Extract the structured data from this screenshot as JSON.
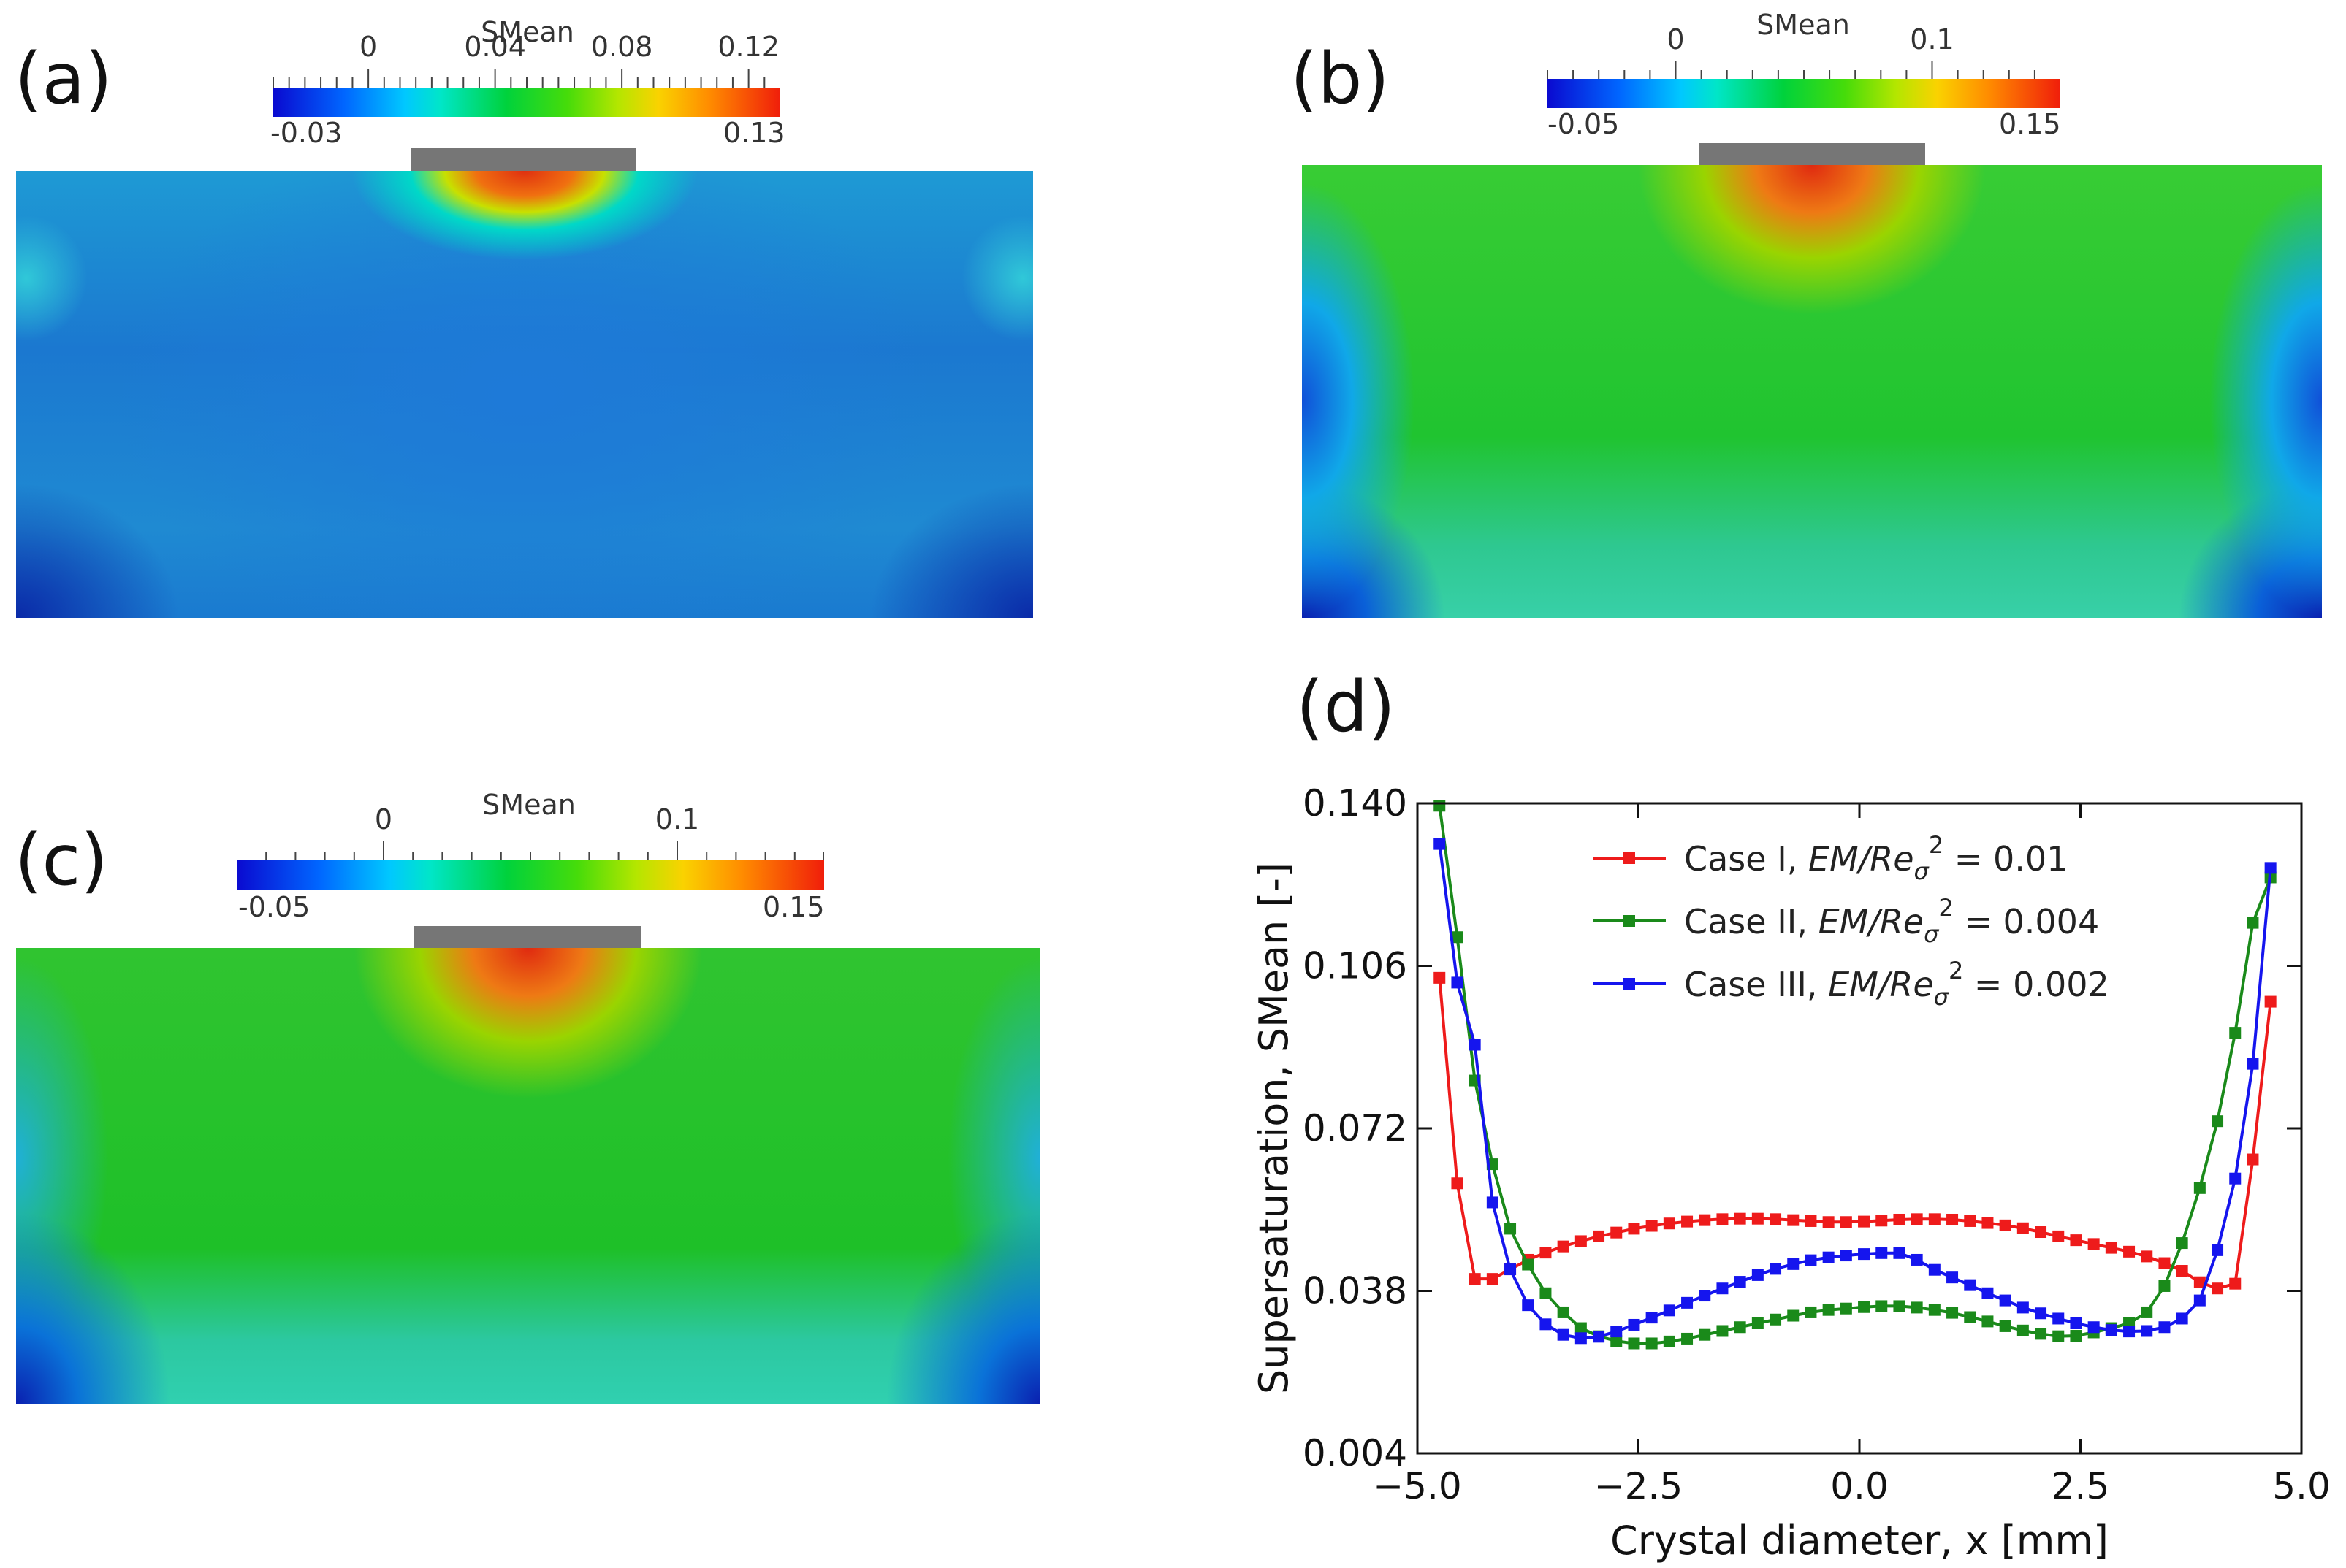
{
  "panels": {
    "a": {
      "label": "(a)",
      "colorbar": {
        "title": "SMean",
        "min_label": "-0.03",
        "max_label": "0.13",
        "tick_labels": [
          "0",
          "0.04",
          "0.08",
          "0.12"
        ],
        "tick_values": [
          0,
          0.04,
          0.08,
          0.12
        ],
        "range": [
          -0.03,
          0.13
        ]
      }
    },
    "b": {
      "label": "(b)",
      "colorbar": {
        "title": "SMean",
        "min_label": "-0.05",
        "max_label": "0.15",
        "tick_labels": [
          "0",
          "0.1"
        ],
        "tick_values": [
          0,
          0.1
        ],
        "range": [
          -0.05,
          0.15
        ]
      }
    },
    "c": {
      "label": "(c)",
      "colorbar": {
        "title": "SMean",
        "min_label": "-0.05",
        "max_label": "0.15",
        "tick_labels": [
          "0",
          "0.1"
        ],
        "tick_values": [
          0,
          0.1
        ],
        "range": [
          -0.05,
          0.15
        ]
      }
    },
    "d": {
      "label": "(d)"
    }
  },
  "colors": {
    "case1": "#ee1b1b",
    "case2": "#1a8a1a",
    "case3": "#1515ee",
    "crystal": "#767676"
  },
  "chart_data": {
    "type": "line",
    "xlabel": "Crystal diameter, x [mm]",
    "ylabel": "Supersaturation, SMean [-]",
    "xlim": [
      -5.0,
      5.0
    ],
    "ylim": [
      0.004,
      0.14
    ],
    "xticks": [
      -5.0,
      -2.5,
      0.0,
      2.5,
      5.0
    ],
    "xtick_labels": [
      "−5.0",
      "−2.5",
      "0.0",
      "2.5",
      "5.0"
    ],
    "yticks": [
      0.004,
      0.038,
      0.072,
      0.106,
      0.14
    ],
    "ytick_labels": [
      "0.004",
      "0.038",
      "0.072",
      "0.106",
      "0.140"
    ],
    "legend_position": "top-center",
    "series": [
      {
        "name": "Case I, EM/Reσ² = 0.01",
        "legend_prefix": "Case I, ",
        "legend_var": "EM/Re",
        "legend_sub": "σ",
        "legend_sup": "2",
        "legend_suffix": " = 0.01",
        "color": "#ee1b1b",
        "x": [
          -4.75,
          -4.55,
          -4.35,
          -4.15,
          -3.95,
          -3.75,
          -3.55,
          -3.35,
          -3.15,
          -2.95,
          -2.75,
          -2.55,
          -2.35,
          -2.15,
          -1.95,
          -1.75,
          -1.55,
          -1.35,
          -1.15,
          -0.95,
          -0.75,
          -0.55,
          -0.35,
          -0.15,
          0.05,
          0.25,
          0.45,
          0.65,
          0.85,
          1.05,
          1.25,
          1.45,
          1.65,
          1.85,
          2.05,
          2.25,
          2.45,
          2.65,
          2.85,
          3.05,
          3.25,
          3.45,
          3.65,
          3.85,
          4.05,
          4.25,
          4.45,
          4.65
        ],
        "y": [
          0.1035,
          0.0605,
          0.0405,
          0.0405,
          0.0425,
          0.0445,
          0.046,
          0.0473,
          0.0484,
          0.0494,
          0.0502,
          0.051,
          0.0516,
          0.0521,
          0.0525,
          0.0528,
          0.053,
          0.0531,
          0.0531,
          0.053,
          0.0528,
          0.0526,
          0.0524,
          0.0524,
          0.0525,
          0.0527,
          0.0529,
          0.053,
          0.053,
          0.0529,
          0.0526,
          0.0522,
          0.0517,
          0.0511,
          0.0503,
          0.0494,
          0.0486,
          0.0478,
          0.047,
          0.0462,
          0.0452,
          0.0438,
          0.0422,
          0.0398,
          0.0385,
          0.0395,
          0.0655,
          0.0985
        ]
      },
      {
        "name": "Case II, EM/Reσ² = 0.004",
        "legend_prefix": "Case II, ",
        "legend_var": "EM/Re",
        "legend_sub": "σ",
        "legend_sup": "2",
        "legend_suffix": " = 0.004",
        "color": "#1a8a1a",
        "x": [
          -4.75,
          -4.55,
          -4.35,
          -4.15,
          -3.95,
          -3.75,
          -3.55,
          -3.35,
          -3.15,
          -2.95,
          -2.75,
          -2.55,
          -2.35,
          -2.15,
          -1.95,
          -1.75,
          -1.55,
          -1.35,
          -1.15,
          -0.95,
          -0.75,
          -0.55,
          -0.35,
          -0.15,
          0.05,
          0.25,
          0.45,
          0.65,
          0.85,
          1.05,
          1.25,
          1.45,
          1.65,
          1.85,
          2.05,
          2.25,
          2.45,
          2.65,
          2.85,
          3.05,
          3.25,
          3.45,
          3.65,
          3.85,
          4.05,
          4.25,
          4.45,
          4.65
        ],
        "y": [
          0.1395,
          0.112,
          0.082,
          0.0645,
          0.051,
          0.0435,
          0.0375,
          0.0335,
          0.0302,
          0.0285,
          0.0275,
          0.027,
          0.027,
          0.0274,
          0.028,
          0.0288,
          0.0296,
          0.0304,
          0.0312,
          0.032,
          0.0328,
          0.0335,
          0.034,
          0.0343,
          0.0346,
          0.0348,
          0.0348,
          0.0345,
          0.034,
          0.0334,
          0.0325,
          0.0316,
          0.0306,
          0.0297,
          0.029,
          0.0285,
          0.0286,
          0.0293,
          0.0302,
          0.0312,
          0.0335,
          0.039,
          0.048,
          0.0595,
          0.0735,
          0.092,
          0.115,
          0.1245
        ]
      },
      {
        "name": "Case III, EM/Reσ² = 0.002",
        "legend_prefix": "Case III, ",
        "legend_var": "EM/Re",
        "legend_sub": "σ",
        "legend_sup": "2",
        "legend_suffix": " = 0.002",
        "color": "#1515ee",
        "x": [
          -4.75,
          -4.55,
          -4.35,
          -4.15,
          -3.95,
          -3.75,
          -3.55,
          -3.35,
          -3.15,
          -2.95,
          -2.75,
          -2.55,
          -2.35,
          -2.15,
          -1.95,
          -1.75,
          -1.55,
          -1.35,
          -1.15,
          -0.95,
          -0.75,
          -0.55,
          -0.35,
          -0.15,
          0.05,
          0.25,
          0.45,
          0.65,
          0.85,
          1.05,
          1.25,
          1.45,
          1.65,
          1.85,
          2.05,
          2.25,
          2.45,
          2.65,
          2.85,
          3.05,
          3.25,
          3.45,
          3.65,
          3.85,
          4.05,
          4.25,
          4.45,
          4.65
        ],
        "y": [
          0.1315,
          0.1025,
          0.0895,
          0.0565,
          0.0425,
          0.035,
          0.031,
          0.0288,
          0.0281,
          0.0284,
          0.0295,
          0.0309,
          0.0324,
          0.0339,
          0.0355,
          0.037,
          0.0385,
          0.0399,
          0.0413,
          0.0426,
          0.0436,
          0.0444,
          0.045,
          0.0454,
          0.0457,
          0.0459,
          0.0459,
          0.0445,
          0.0424,
          0.0408,
          0.0392,
          0.0375,
          0.036,
          0.0345,
          0.0333,
          0.0322,
          0.0312,
          0.0304,
          0.0298,
          0.0295,
          0.0296,
          0.0304,
          0.0322,
          0.036,
          0.0465,
          0.0615,
          0.0855,
          0.1265
        ]
      }
    ]
  }
}
